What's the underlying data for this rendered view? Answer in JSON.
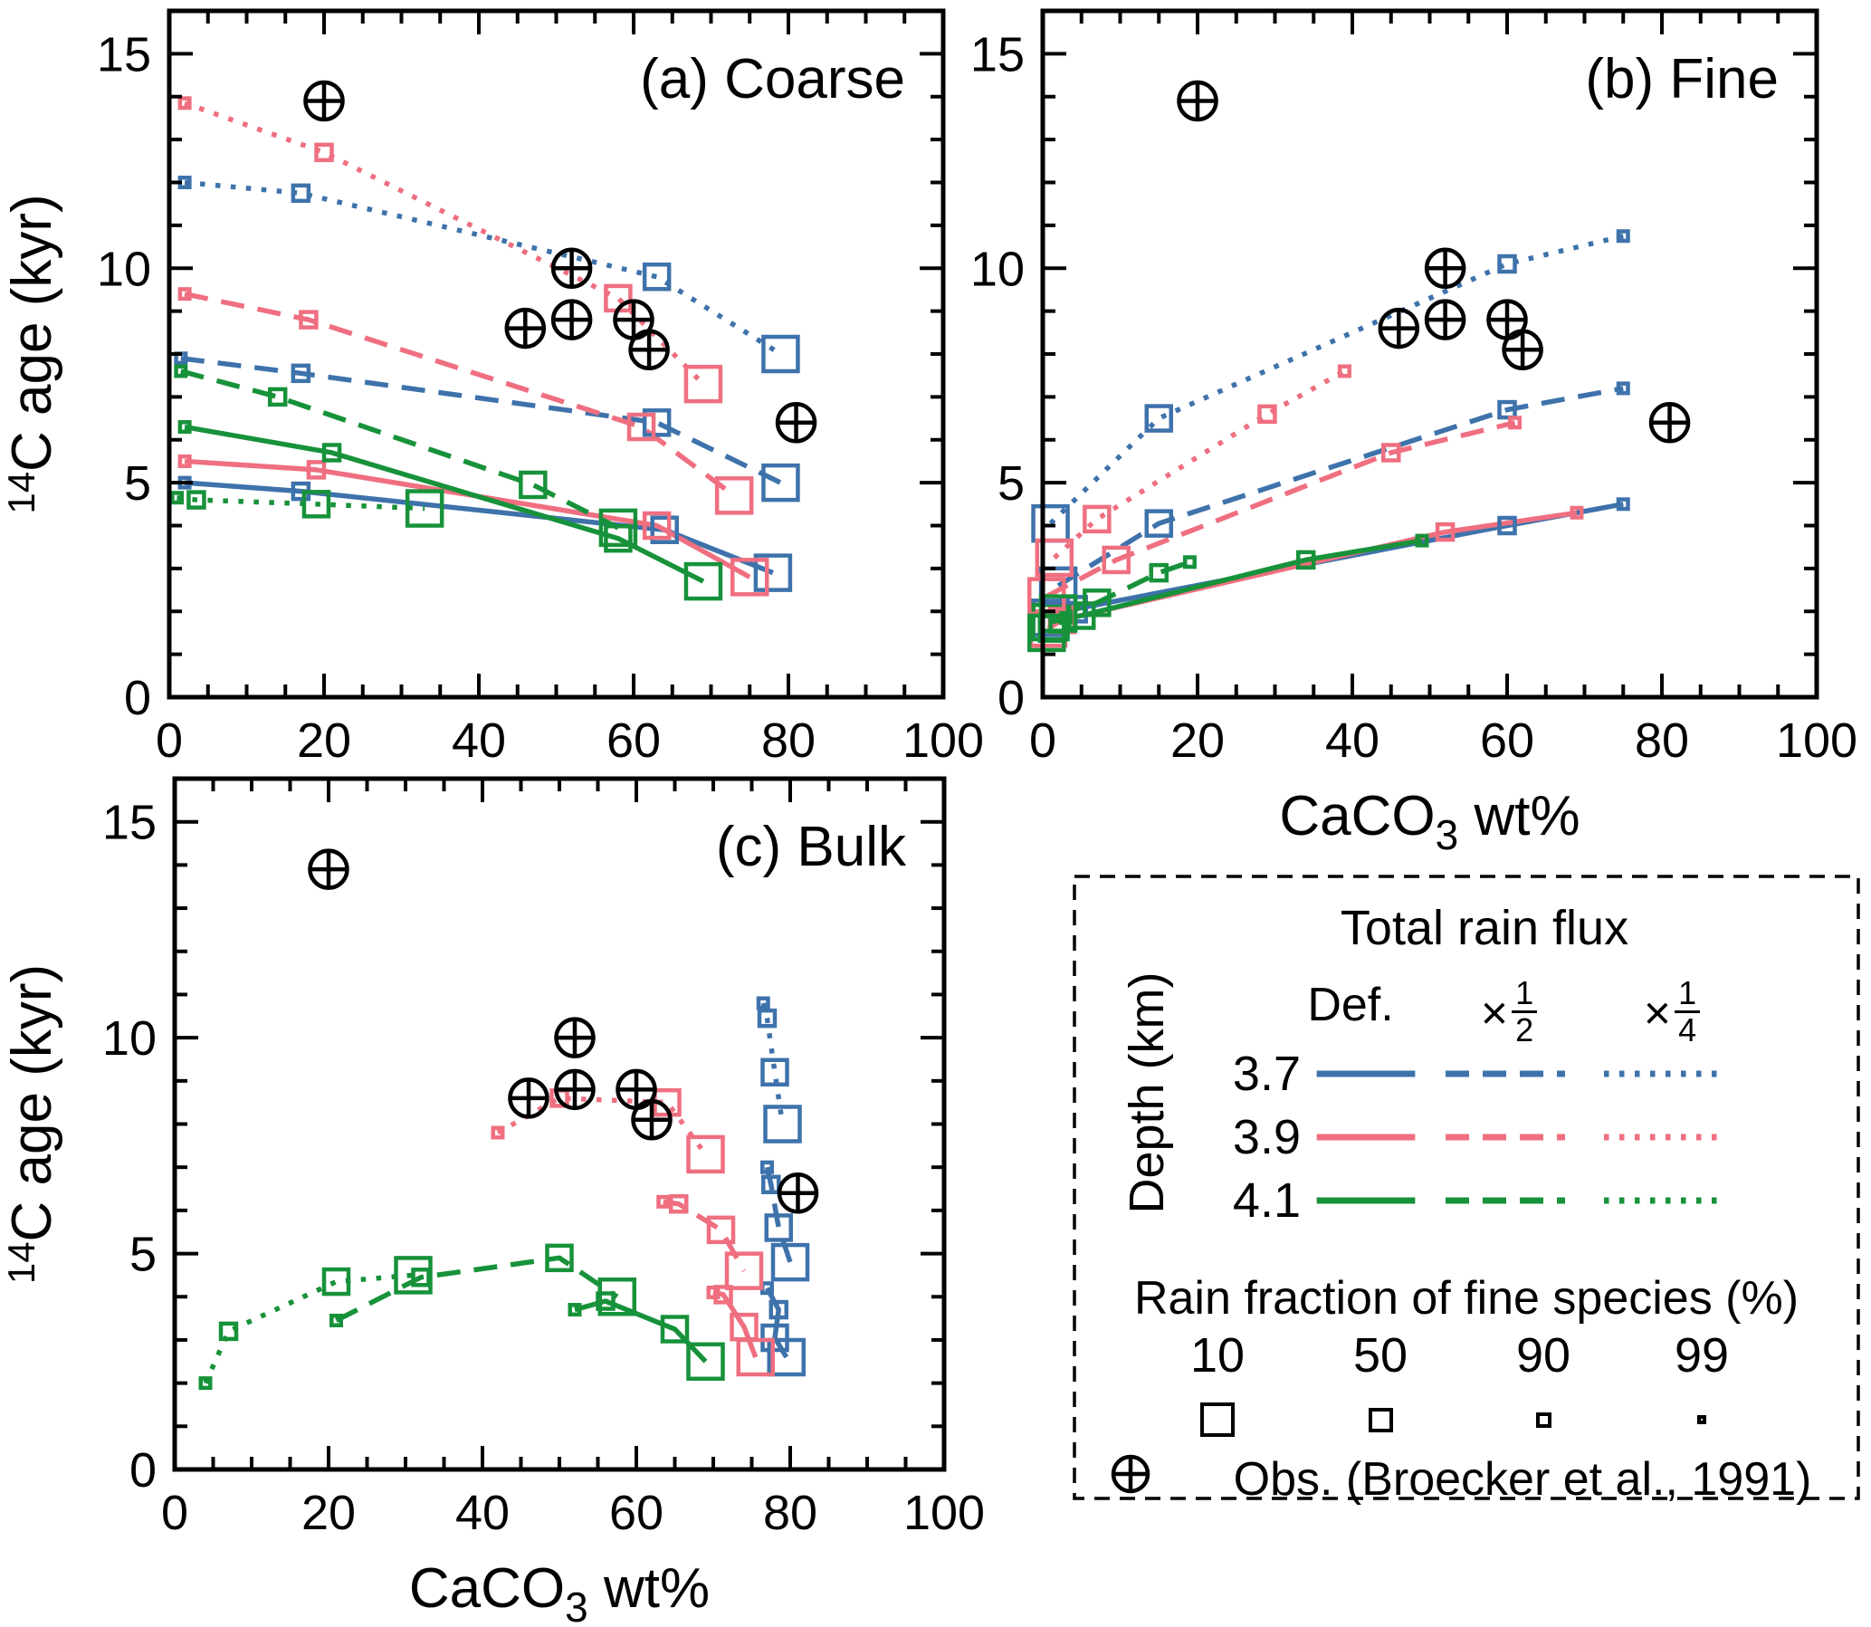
{
  "colors": {
    "blue": "#3e72ab",
    "pink": "#ef6f80",
    "green": "#17923a",
    "black": "#000000"
  },
  "axes": {
    "xlim": [
      0,
      100
    ],
    "ylim": [
      0,
      16
    ],
    "xticks": [
      0,
      20,
      40,
      60,
      80,
      100
    ],
    "yticks": [
      0,
      5,
      10,
      15
    ],
    "x_minor_step": 5,
    "y_minor_step": 1,
    "xlabel": {
      "main": "CaCO",
      "sub": "3",
      "rest": " wt%"
    },
    "ylabel": {
      "sup": "14",
      "main": "C age (kyr)"
    }
  },
  "marker_sizes": {
    "10": 38,
    "50": 27,
    "90": 17,
    "99": 10.5
  },
  "obs_points": [
    [
      20,
      13.9
    ],
    [
      52,
      10.0
    ],
    [
      46,
      8.6
    ],
    [
      52,
      8.8
    ],
    [
      60,
      8.8
    ],
    [
      62,
      8.1
    ],
    [
      81,
      6.4
    ]
  ],
  "chart_data": [
    {
      "id": "a",
      "type": "line",
      "title": "(a) Coarse",
      "show_ylabel": true,
      "show_xlabel": false,
      "series": [
        {
          "depth": "3.7",
          "flux": "Def.",
          "color": "blue",
          "style": "solid",
          "fracs": [
            99,
            90,
            50,
            10
          ],
          "points": [
            [
              2,
              5.0
            ],
            [
              17,
              4.8
            ],
            [
              64,
              3.9
            ],
            [
              78,
              2.9
            ]
          ]
        },
        {
          "depth": "3.9",
          "flux": "Def.",
          "color": "pink",
          "style": "solid",
          "fracs": [
            99,
            90,
            50,
            10
          ],
          "points": [
            [
              2,
              5.5
            ],
            [
              19,
              5.3
            ],
            [
              63,
              4.0
            ],
            [
              75,
              2.8
            ]
          ]
        },
        {
          "depth": "4.1",
          "flux": "Def.",
          "color": "green",
          "style": "solid",
          "fracs": [
            99,
            90,
            50,
            10
          ],
          "points": [
            [
              2,
              6.3
            ],
            [
              21,
              5.7
            ],
            [
              58,
              3.7
            ],
            [
              69,
              2.7
            ]
          ]
        },
        {
          "depth": "3.7",
          "flux": "×1/2",
          "color": "blue",
          "style": "dashed",
          "fracs": [
            99,
            90,
            50,
            10
          ],
          "points": [
            [
              1.5,
              7.9
            ],
            [
              17,
              7.55
            ],
            [
              63,
              6.4
            ],
            [
              79,
              5.0
            ]
          ]
        },
        {
          "depth": "3.9",
          "flux": "×1/2",
          "color": "pink",
          "style": "dashed",
          "fracs": [
            99,
            90,
            50,
            10
          ],
          "points": [
            [
              2,
              9.4
            ],
            [
              18,
              8.8
            ],
            [
              61,
              6.3
            ],
            [
              73,
              4.7
            ]
          ]
        },
        {
          "depth": "4.1",
          "flux": "×1/2",
          "color": "green",
          "style": "dashed",
          "fracs": [
            99,
            90,
            50,
            10
          ],
          "points": [
            [
              1.5,
              7.6
            ],
            [
              14,
              7.0
            ],
            [
              47,
              4.95
            ],
            [
              58,
              3.95
            ]
          ]
        },
        {
          "depth": "3.7",
          "flux": "×1/4",
          "color": "blue",
          "style": "dotted",
          "fracs": [
            99,
            90,
            50,
            10
          ],
          "points": [
            [
              2,
              12.0
            ],
            [
              17,
              11.75
            ],
            [
              63,
              9.8
            ],
            [
              79,
              8.0
            ]
          ]
        },
        {
          "depth": "3.9",
          "flux": "×1/4",
          "color": "pink",
          "style": "dotted",
          "fracs": [
            99,
            90,
            50,
            10
          ],
          "points": [
            [
              2,
              13.85
            ],
            [
              20,
              12.7
            ],
            [
              58,
              9.3
            ],
            [
              69,
              7.3
            ]
          ]
        },
        {
          "depth": "4.1",
          "flux": "×1/4",
          "color": "green",
          "style": "dotted",
          "fracs": [
            99,
            90,
            50,
            10
          ],
          "points": [
            [
              1,
              4.65
            ],
            [
              3.5,
              4.6
            ],
            [
              19,
              4.5
            ],
            [
              33,
              4.4
            ]
          ]
        }
      ]
    },
    {
      "id": "b",
      "type": "line",
      "title": "(b) Fine",
      "show_ylabel": false,
      "show_xlabel": true,
      "series": [
        {
          "depth": "3.7",
          "flux": "Def.",
          "color": "blue",
          "style": "solid",
          "fracs": [
            10,
            50,
            90,
            99
          ],
          "points": [
            [
              1,
              1.85
            ],
            [
              4,
              2.05
            ],
            [
              60,
              4.0
            ],
            [
              75,
              4.5
            ]
          ]
        },
        {
          "depth": "3.9",
          "flux": "Def.",
          "color": "pink",
          "style": "solid",
          "fracs": [
            10,
            50,
            90,
            99
          ],
          "points": [
            [
              0.7,
              1.6
            ],
            [
              2.5,
              1.8
            ],
            [
              52,
              3.85
            ],
            [
              69,
              4.3
            ]
          ]
        },
        {
          "depth": "4.1",
          "flux": "Def.",
          "color": "green",
          "style": "solid",
          "fracs": [
            10,
            50,
            90,
            99
          ],
          "points": [
            [
              1,
              1.75
            ],
            [
              5,
              1.9
            ],
            [
              34,
              3.2
            ],
            [
              49,
              3.65
            ]
          ]
        },
        {
          "depth": "3.7",
          "flux": "×1/2",
          "color": "blue",
          "style": "dashed",
          "fracs": [
            10,
            50,
            90,
            99
          ],
          "points": [
            [
              2,
              2.6
            ],
            [
              15,
              4.05
            ],
            [
              60,
              6.7
            ],
            [
              75,
              7.2
            ]
          ]
        },
        {
          "depth": "3.9",
          "flux": "×1/2",
          "color": "pink",
          "style": "dashed",
          "fracs": [
            10,
            50,
            90,
            99
          ],
          "points": [
            [
              0.5,
              2.35
            ],
            [
              9.5,
              3.2
            ],
            [
              45,
              5.7
            ],
            [
              61,
              6.4
            ]
          ]
        },
        {
          "depth": "4.1",
          "flux": "×1/2",
          "color": "green",
          "style": "dashed",
          "fracs": [
            10,
            50,
            90,
            99
          ],
          "points": [
            [
              2,
              1.95
            ],
            [
              7,
              2.2
            ],
            [
              15,
              2.9
            ],
            [
              19,
              3.15
            ]
          ]
        },
        {
          "depth": "3.7",
          "flux": "×1/4",
          "color": "blue",
          "style": "dotted",
          "fracs": [
            10,
            50,
            90,
            99
          ],
          "points": [
            [
              1,
              4.05
            ],
            [
              15,
              6.5
            ],
            [
              60,
              10.1
            ],
            [
              75,
              10.75
            ]
          ]
        },
        {
          "depth": "3.9",
          "flux": "×1/4",
          "color": "pink",
          "style": "dotted",
          "fracs": [
            10,
            50,
            90,
            99
          ],
          "points": [
            [
              1.5,
              3.25
            ],
            [
              7,
              4.15
            ],
            [
              29,
              6.6
            ],
            [
              39,
              7.6
            ]
          ]
        },
        {
          "depth": "4.1",
          "flux": "×1/4",
          "color": "green",
          "style": "dotted",
          "fracs": [
            10,
            50,
            90,
            99
          ],
          "points": [
            [
              0.5,
              1.5
            ],
            [
              1.2,
              1.6
            ],
            [
              2,
              1.7
            ],
            [
              3,
              1.85
            ]
          ]
        }
      ]
    },
    {
      "id": "c",
      "type": "line",
      "title": "(c) Bulk",
      "show_ylabel": true,
      "show_xlabel": true,
      "series": [
        {
          "depth": "3.7",
          "flux": "Def.",
          "color": "blue",
          "style": "solid",
          "fracs": [
            99,
            90,
            50,
            10
          ],
          "points": [
            [
              77,
              4.2
            ],
            [
              78.5,
              3.7
            ],
            [
              78,
              3.05
            ],
            [
              79.5,
              2.6
            ]
          ]
        },
        {
          "depth": "3.9",
          "flux": "Def.",
          "color": "pink",
          "style": "solid",
          "fracs": [
            99,
            90,
            50,
            10
          ],
          "points": [
            [
              70,
              4.1
            ],
            [
              71.3,
              4.05
            ],
            [
              74,
              3.3
            ],
            [
              75.5,
              2.6
            ]
          ]
        },
        {
          "depth": "4.1",
          "flux": "Def.",
          "color": "green",
          "style": "solid",
          "fracs": [
            99,
            90,
            50,
            10
          ],
          "points": [
            [
              52,
              3.7
            ],
            [
              56,
              3.9
            ],
            [
              65,
              3.25
            ],
            [
              69,
              2.5
            ]
          ]
        },
        {
          "depth": "3.7",
          "flux": "×1/2",
          "color": "blue",
          "style": "dashed",
          "fracs": [
            99,
            90,
            50,
            10
          ],
          "points": [
            [
              77,
              7.0
            ],
            [
              77.5,
              6.6
            ],
            [
              78.5,
              5.6
            ],
            [
              80,
              4.8
            ]
          ]
        },
        {
          "depth": "3.9",
          "flux": "×1/2",
          "color": "pink",
          "style": "dashed",
          "fracs": [
            99,
            90,
            50,
            10
          ],
          "points": [
            [
              63.5,
              6.2
            ],
            [
              65.5,
              6.15
            ],
            [
              71,
              5.55
            ],
            [
              74,
              4.6
            ]
          ]
        },
        {
          "depth": "4.1",
          "flux": "×1/2",
          "color": "green",
          "style": "dashed",
          "fracs": [
            99,
            90,
            50,
            10
          ],
          "points": [
            [
              21,
              3.45
            ],
            [
              32,
              4.45
            ],
            [
              50,
              4.9
            ],
            [
              57.5,
              4.0
            ]
          ]
        },
        {
          "depth": "3.7",
          "flux": "×1/4",
          "color": "blue",
          "style": "dotted",
          "fracs": [
            99,
            90,
            50,
            10
          ],
          "points": [
            [
              76.5,
              10.8
            ],
            [
              77,
              10.45
            ],
            [
              78,
              9.2
            ],
            [
              79,
              8.0
            ]
          ]
        },
        {
          "depth": "3.9",
          "flux": "×1/4",
          "color": "pink",
          "style": "dotted",
          "fracs": [
            99,
            90,
            50,
            10
          ],
          "points": [
            [
              42,
              7.8
            ],
            [
              50,
              8.6
            ],
            [
              64,
              8.5
            ],
            [
              69,
              7.3
            ]
          ]
        },
        {
          "depth": "4.1",
          "flux": "×1/4",
          "color": "green",
          "style": "dotted",
          "fracs": [
            99,
            90,
            50,
            10
          ],
          "points": [
            [
              4,
              2.0
            ],
            [
              7,
              3.2
            ],
            [
              21,
              4.35
            ],
            [
              31,
              4.5
            ]
          ]
        }
      ]
    }
  ],
  "legend": {
    "title": "Total rain flux",
    "depth_axis_label": "Depth (km)",
    "columns": [
      {
        "label": "Def.",
        "style": "solid"
      },
      {
        "times": "×",
        "num": "1",
        "den": "2",
        "style": "dashed"
      },
      {
        "times": "×",
        "num": "1",
        "den": "4",
        "style": "dotted"
      }
    ],
    "rows": [
      {
        "depth": "3.7",
        "color": "blue"
      },
      {
        "depth": "3.9",
        "color": "pink"
      },
      {
        "depth": "4.1",
        "color": "green"
      }
    ],
    "fraction_title": "Rain fraction of fine species (%)",
    "fractions": [
      {
        "label": "10",
        "size": 38
      },
      {
        "label": "50",
        "size": 27
      },
      {
        "label": "90",
        "size": 17
      },
      {
        "label": "99",
        "size": 10.5
      }
    ],
    "obs_label": "Obs. (Broecker et al., 1991)"
  }
}
